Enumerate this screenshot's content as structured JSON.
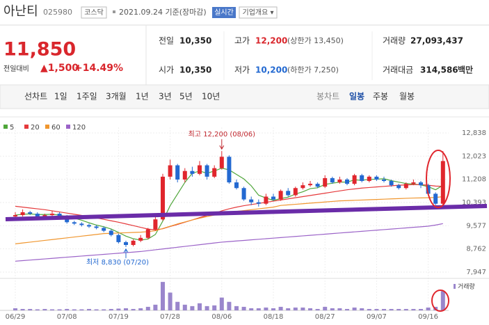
{
  "header": {
    "name": "아난티",
    "code": "025980",
    "market": "코스닥",
    "date": "2021.09.24 기준(장마감)",
    "realtime": "실시간",
    "company": "기업개요 ▾"
  },
  "quote": {
    "price": "11,850",
    "change_label": "전일대비",
    "change": "▲1,500",
    "change_rate": "+14.49%",
    "stats": [
      {
        "label": "전일",
        "value": "10,350"
      },
      {
        "label": "고가",
        "value": "12,200",
        "note": "(상한가 13,450)"
      },
      {
        "label": "거래량",
        "value": "27,093,437"
      },
      {
        "label": "시가",
        "value": "10,350"
      },
      {
        "label": "저가",
        "value": "10,200",
        "note": "(하한가 7,250)"
      },
      {
        "label": "거래대금",
        "value": "314,586",
        "unit": "백만"
      }
    ]
  },
  "tabs": {
    "line_chart": "선차트",
    "periods": [
      "1일",
      "1주일",
      "3개월",
      "1년",
      "3년",
      "5년",
      "10년"
    ],
    "candle_chart": "봉차트",
    "candle_periods": [
      "일봉",
      "주봉",
      "월봉"
    ]
  },
  "chart_data": [
    {
      "type": "candlestick",
      "up_color": "#e0262d",
      "down_color": "#2369d1",
      "categories": [
        "06/29",
        null,
        null,
        null,
        null,
        null,
        null,
        "07/08",
        null,
        null,
        null,
        null,
        null,
        null,
        "07/19",
        null,
        null,
        null,
        null,
        null,
        null,
        "07/28",
        null,
        null,
        null,
        null,
        null,
        null,
        "08/06",
        null,
        null,
        null,
        null,
        null,
        null,
        "08/18",
        null,
        null,
        null,
        null,
        null,
        null,
        "08/27",
        null,
        null,
        null,
        null,
        null,
        null,
        "09/07",
        null,
        null,
        null,
        null,
        null,
        null,
        "09/16",
        null,
        null
      ],
      "open": [
        9900,
        9950,
        10050,
        10000,
        9900,
        9950,
        10000,
        9900,
        9700,
        9650,
        9600,
        9550,
        9500,
        9400,
        9250,
        9000,
        8900,
        9050,
        9150,
        9450,
        9800,
        11300,
        11700,
        11200,
        11500,
        11400,
        11700,
        11300,
        11600,
        12000,
        11100,
        10900,
        10500,
        10400,
        10350,
        10600,
        10500,
        10800,
        10650,
        10900,
        11000,
        11050,
        10950,
        11250,
        11100,
        11200,
        11050,
        11350,
        11150,
        11300,
        11200,
        11150,
        11000,
        10900,
        11050,
        11100,
        11000,
        10700,
        10350
      ],
      "high": [
        10050,
        10150,
        10100,
        10050,
        10000,
        10100,
        10050,
        9950,
        9750,
        9700,
        9650,
        9600,
        9550,
        9450,
        9300,
        9050,
        9100,
        9250,
        9500,
        9900,
        11400,
        11900,
        11750,
        11600,
        11650,
        11850,
        11750,
        11700,
        12200,
        12050,
        11200,
        10950,
        10600,
        10500,
        10700,
        10700,
        10850,
        10900,
        10950,
        11100,
        11150,
        11100,
        11350,
        11300,
        11300,
        11250,
        11400,
        11400,
        11350,
        11350,
        11300,
        11200,
        11050,
        11100,
        11200,
        11150,
        11050,
        10750,
        12200
      ],
      "low": [
        9850,
        9900,
        9950,
        9850,
        9850,
        9900,
        9850,
        9650,
        9600,
        9550,
        9500,
        9450,
        9350,
        9200,
        8950,
        8830,
        8850,
        9000,
        9100,
        9400,
        9750,
        11200,
        11100,
        11100,
        11300,
        11350,
        11200,
        11250,
        11550,
        11050,
        10850,
        10450,
        10300,
        10250,
        10300,
        10450,
        10450,
        10600,
        10600,
        10850,
        10950,
        10900,
        10900,
        11050,
        11050,
        11000,
        11000,
        11100,
        11100,
        11150,
        11100,
        10950,
        10850,
        10850,
        11000,
        10900,
        10650,
        10300,
        10200
      ],
      "close": [
        9950,
        10050,
        10000,
        9900,
        9950,
        10000,
        9900,
        9700,
        9650,
        9600,
        9550,
        9500,
        9400,
        9250,
        9000,
        8900,
        9050,
        9150,
        9450,
        9800,
        11300,
        11700,
        11200,
        11500,
        11400,
        11700,
        11300,
        11600,
        12000,
        11100,
        10900,
        10500,
        10400,
        10350,
        10600,
        10500,
        10800,
        10650,
        10900,
        11000,
        11050,
        10950,
        11250,
        11100,
        11200,
        11050,
        11350,
        11150,
        11300,
        11200,
        11150,
        11000,
        10900,
        11050,
        11100,
        11000,
        10700,
        10350,
        11850
      ],
      "series": [
        {
          "name": "5",
          "color": "#4fa63a",
          "values": [
            9950,
            9980,
            9990,
            9970,
            9970,
            9980,
            9950,
            9890,
            9840,
            9770,
            9680,
            9600,
            9540,
            9460,
            9340,
            9210,
            9120,
            9070,
            9110,
            9270,
            9740,
            10280,
            10690,
            11100,
            11420,
            11500,
            11420,
            11500,
            11600,
            11540,
            11380,
            11220,
            10980,
            10650,
            10550,
            10470,
            10530,
            10580,
            10690,
            10770,
            10880,
            10910,
            11030,
            11070,
            11110,
            11110,
            11190,
            11170,
            11210,
            11210,
            11230,
            11160,
            11110,
            11060,
            11040,
            11010,
            10950,
            10840,
            11000
          ]
        },
        {
          "name": "20",
          "color": "#e5393b",
          "values": [
            10260,
            10230,
            10200,
            10170,
            10140,
            10100,
            10060,
            10020,
            9980,
            9940,
            9900,
            9850,
            9800,
            9750,
            9700,
            9640,
            9580,
            9520,
            9460,
            9430,
            9470,
            9550,
            9620,
            9700,
            9780,
            9860,
            9940,
            10010,
            10100,
            10170,
            10230,
            10280,
            10320,
            10360,
            10400,
            10440,
            10480,
            10520,
            10560,
            10600,
            10640,
            10680,
            10720,
            10760,
            10800,
            10840,
            10870,
            10900,
            10920,
            10940,
            10960,
            10980,
            11000,
            11010,
            11020,
            11020,
            11000,
            10970,
            10960
          ]
        },
        {
          "name": "60",
          "color": "#f0962e",
          "values": [
            8940,
            8970,
            9000,
            9030,
            9060,
            9090,
            9120,
            9150,
            9180,
            9210,
            9240,
            9270,
            9300,
            9310,
            9320,
            9330,
            9340,
            9350,
            9370,
            9400,
            9480,
            9560,
            9640,
            9710,
            9780,
            9840,
            9900,
            9950,
            10000,
            10040,
            10080,
            10110,
            10140,
            10170,
            10200,
            10230,
            10290,
            10310,
            10330,
            10350,
            10370,
            10390,
            10410,
            10430,
            10450,
            10460,
            10470,
            10480,
            10490,
            10500,
            10510,
            10520,
            10530,
            10540,
            10550,
            10555,
            10560,
            10570,
            10600
          ]
        },
        {
          "name": "120",
          "color": "#9b63c8",
          "values": [
            8330,
            8350,
            8370,
            8390,
            8410,
            8430,
            8450,
            8470,
            8490,
            8510,
            8530,
            8550,
            8570,
            8590,
            8610,
            8630,
            8650,
            8670,
            8700,
            8730,
            8760,
            8790,
            8820,
            8850,
            8880,
            8910,
            8940,
            8970,
            9000,
            9020,
            9040,
            9060,
            9080,
            9100,
            9120,
            9140,
            9160,
            9180,
            9200,
            9220,
            9240,
            9260,
            9280,
            9300,
            9320,
            9340,
            9360,
            9380,
            9400,
            9420,
            9440,
            9460,
            9480,
            9500,
            9520,
            9540,
            9560,
            9600,
            9650
          ]
        }
      ],
      "ylim": [
        7775,
        13034
      ],
      "yticks": [
        {
          "value": 12838,
          "label": "12,838"
        },
        {
          "value": 12023,
          "label": "12,023"
        },
        {
          "value": 11208,
          "label": "11,208"
        },
        {
          "value": 10393,
          "label": "10,393"
        },
        {
          "value": 9577,
          "label": "9,577"
        },
        {
          "value": 8762,
          "label": "8,762"
        },
        {
          "value": 7947,
          "label": "7,947"
        }
      ],
      "grid": true,
      "annotations": {
        "max": "최고 12,200 (08/06)",
        "min": "최저 8,830 (07/20)"
      }
    },
    {
      "type": "bar",
      "name": "거래량",
      "color": "#9a86cc",
      "ylim": [
        0,
        45000000
      ],
      "values": [
        3000000,
        2000000,
        2000000,
        1500000,
        2000000,
        1500000,
        1500000,
        2000000,
        1500000,
        1500000,
        2000000,
        1500000,
        1500000,
        2000000,
        2500000,
        3000000,
        2000000,
        3000000,
        5000000,
        8000000,
        40000000,
        25000000,
        12000000,
        8000000,
        6000000,
        10000000,
        6000000,
        7000000,
        18000000,
        12000000,
        6000000,
        5000000,
        3000000,
        3000000,
        4000000,
        3000000,
        5000000,
        3000000,
        4000000,
        4000000,
        3000000,
        2000000,
        5000000,
        3000000,
        3000000,
        2000000,
        4000000,
        3000000,
        2000000,
        2000000,
        2000000,
        2000000,
        2000000,
        2000000,
        2000000,
        2000000,
        4000000,
        5000000,
        27093437
      ]
    }
  ]
}
